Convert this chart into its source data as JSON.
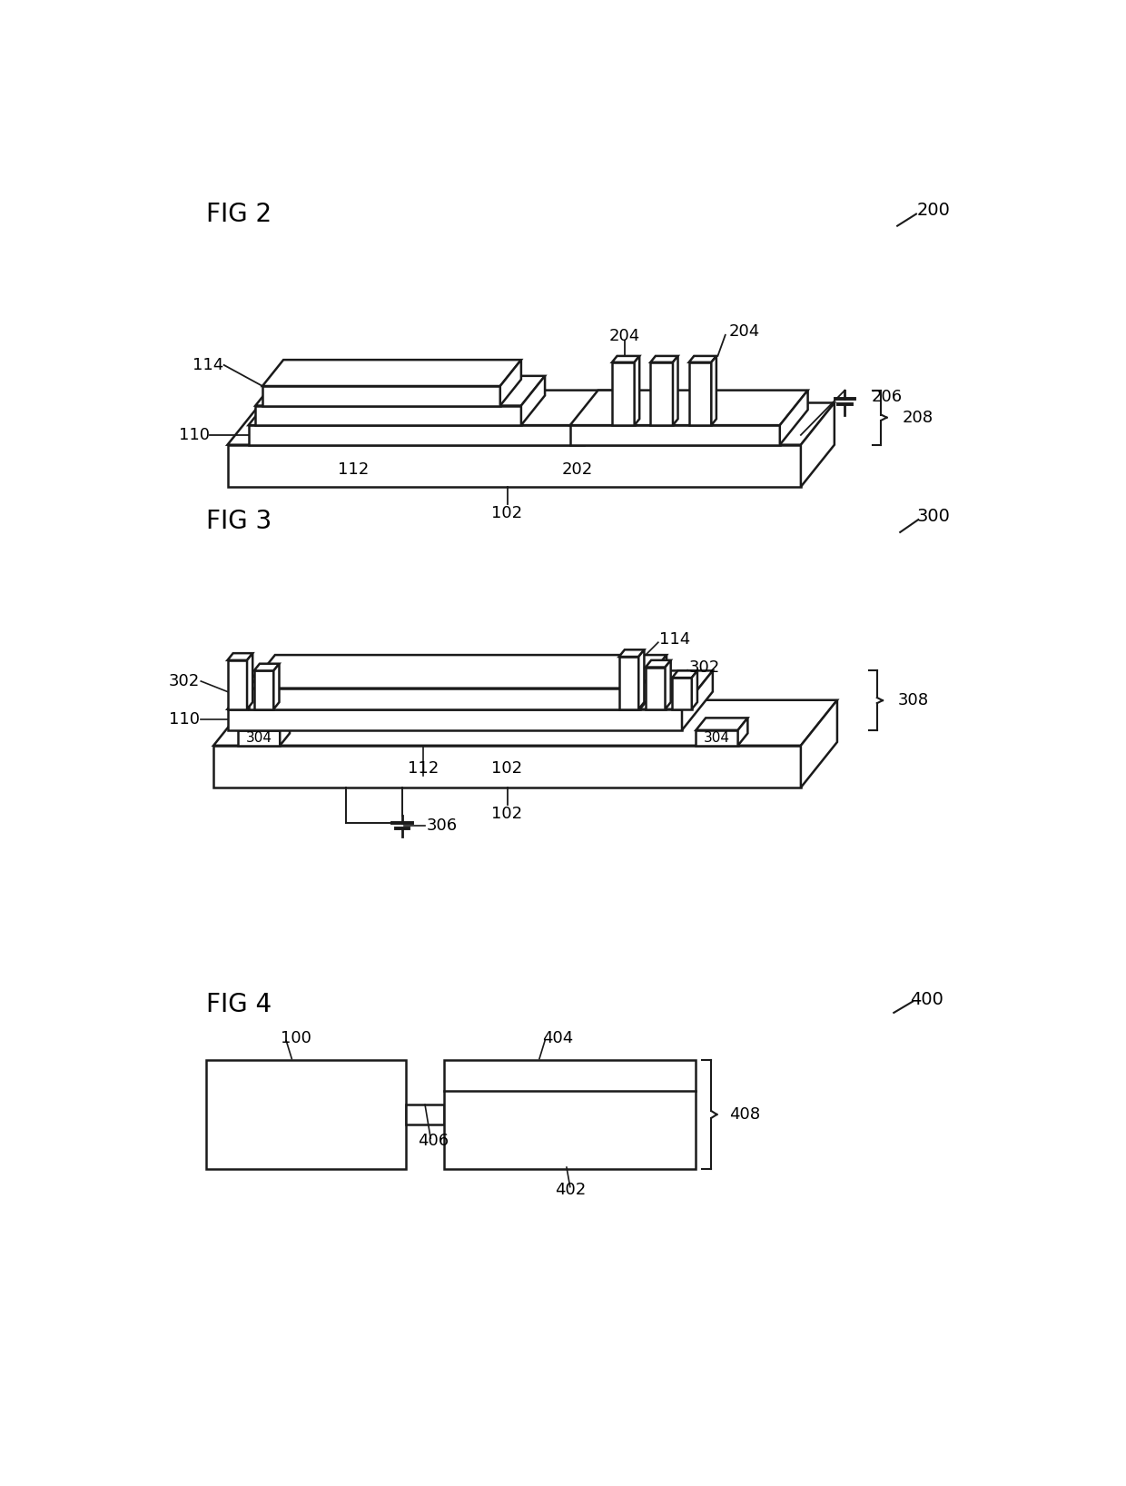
{
  "bg_color": "#ffffff",
  "line_color": "#1a1a1a",
  "fig2_label": "FIG 2",
  "fig3_label": "FIG 3",
  "fig4_label": "FIG 4",
  "fig2_ref": "200",
  "fig3_ref": "300",
  "fig4_ref": "400",
  "font_size_label": 20,
  "font_size_ref": 14,
  "font_size_anno": 13
}
